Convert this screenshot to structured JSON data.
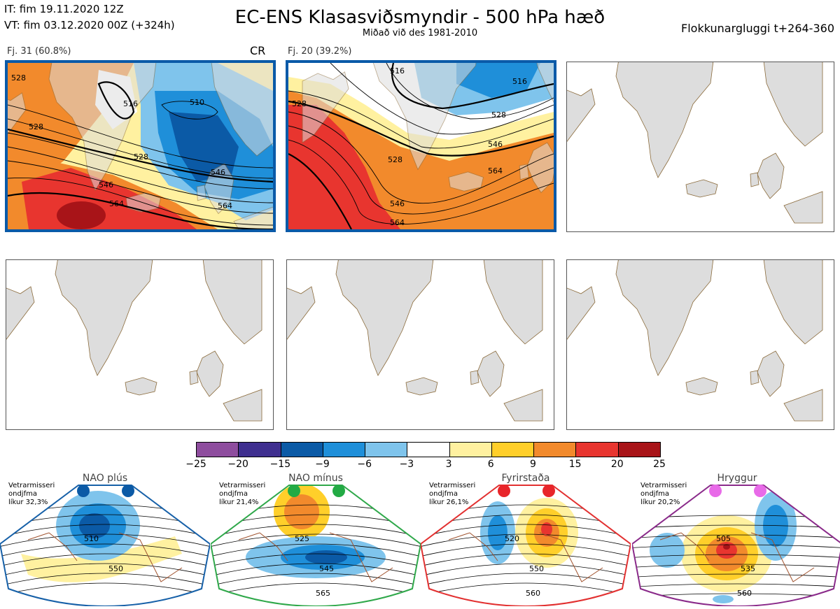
{
  "header": {
    "it_line": "IT: fim 19.11.2020 12Z",
    "vt_line": "VT: fim 03.12.2020 00Z  (+324h)",
    "title": "EC-ENS Klasasviðsmyndir - 500 hPa hæð",
    "subtitle": "Miðað við des 1981-2010",
    "window": "Flokkunargluggi t+264-360"
  },
  "panels": [
    {
      "label": "Fj. 31 (60.8%)",
      "tag": "CR",
      "selected": true
    },
    {
      "label": "Fj. 20 (39.2%)",
      "tag": "",
      "selected": true
    }
  ],
  "panel1_contours": [
    "510",
    "516",
    "528",
    "528",
    "528",
    "546",
    "546",
    "564",
    "564"
  ],
  "panel2_contours": [
    "516",
    "516",
    "528",
    "528",
    "528",
    "546",
    "546",
    "564",
    "564"
  ],
  "colorbar": {
    "labels": [
      "−25",
      "−20",
      "−15",
      "−9",
      "−6",
      "−3",
      "3",
      "6",
      "9",
      "15",
      "20",
      "25"
    ],
    "colors": [
      "#8e4d9e",
      "#3f2f8f",
      "#0b5aa6",
      "#1f8fd9",
      "#7fc4ec",
      "#ffffff",
      "#fff1a0",
      "#ffcf2a",
      "#f28a2c",
      "#e8352f",
      "#a81418"
    ]
  },
  "regimes": [
    {
      "name": "NAO plús",
      "dot_color": "#0b5aa6",
      "txt1": "Vetrarmisseri",
      "txt2": "ondjfma",
      "txt3": "líkur 32,3%",
      "frame_color": "#1660a8",
      "contours": [
        "510",
        "550"
      ]
    },
    {
      "name": "NAO mínus",
      "dot_color": "#22aa44",
      "txt1": "Vetrarmisseri",
      "txt2": "ondjfma",
      "txt3": "líkur 21,4%",
      "frame_color": "#2fa84a",
      "contours": [
        "525",
        "545",
        "565"
      ]
    },
    {
      "name": "Fyrirstaða",
      "dot_color": "#e8252a",
      "txt1": "Vetrarmisseri",
      "txt2": "ondjfma",
      "txt3": "líkur 26,1%",
      "frame_color": "#e23030",
      "contours": [
        "520",
        "550",
        "560"
      ]
    },
    {
      "name": "Hryggur",
      "dot_color": "#e86ae8",
      "txt1": "Vetrarmisseri",
      "txt2": "ondjfma",
      "txt3": "líkur 20,2%",
      "frame_color": "#8a2a8a",
      "contours": [
        "505",
        "535",
        "560"
      ]
    }
  ]
}
